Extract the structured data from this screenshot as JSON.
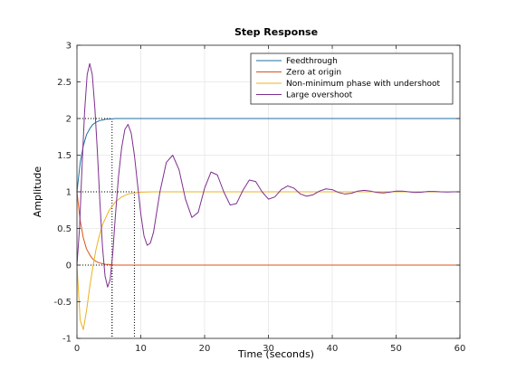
{
  "chart_data": {
    "type": "line",
    "title": "Step Response",
    "xlabel": "Time (seconds)",
    "ylabel": "Amplitude",
    "xlim": [
      0,
      60
    ],
    "ylim": [
      -1,
      3
    ],
    "xticks": [
      "0",
      "10",
      "20",
      "30",
      "40",
      "50",
      "60"
    ],
    "yticks": [
      "-1",
      "-0.5",
      "0",
      "0.5",
      "1",
      "1.5",
      "2",
      "2.5",
      "3"
    ],
    "grid": true,
    "legend_position": "top-right",
    "series": [
      {
        "name": "Feedthrough",
        "color": "#1f6f9f",
        "x": [
          0,
          0.5,
          1,
          1.5,
          2,
          2.5,
          3,
          3.5,
          4,
          4.5,
          5,
          6,
          10,
          20,
          30,
          40,
          50,
          60
        ],
        "y": [
          1.0,
          1.39,
          1.63,
          1.78,
          1.86,
          1.92,
          1.95,
          1.97,
          1.98,
          1.99,
          1.99,
          2.0,
          2.0,
          2.0,
          2.0,
          2.0,
          2.0,
          2.0
        ],
        "settle_x": 5.5,
        "settle_y": 2.0
      },
      {
        "name": "Zero at origin",
        "color": "#d95319",
        "x": [
          0,
          0.5,
          1,
          1.5,
          2,
          2.5,
          3,
          3.5,
          4,
          4.5,
          5,
          6,
          10,
          20,
          30,
          40,
          50,
          60
        ],
        "y": [
          1.0,
          0.61,
          0.37,
          0.22,
          0.14,
          0.08,
          0.05,
          0.03,
          0.02,
          0.01,
          0.01,
          0.0,
          0.0,
          0.0,
          0.0,
          0.0,
          0.0,
          0.0
        ],
        "settle_x": 5.5,
        "settle_y": 0.0
      },
      {
        "name": "Non-minimum phase with undershoot",
        "color": "#edb120",
        "x": [
          0,
          0.5,
          1,
          1.5,
          2,
          2.5,
          3,
          3.5,
          4,
          5,
          6,
          7,
          8,
          9,
          10,
          12,
          14,
          20,
          30,
          40,
          50,
          60
        ],
        "y": [
          0.0,
          -0.75,
          -0.88,
          -0.62,
          -0.3,
          -0.02,
          0.22,
          0.4,
          0.55,
          0.74,
          0.86,
          0.93,
          0.97,
          0.985,
          0.995,
          1.0,
          1.0,
          1.0,
          1.0,
          1.0,
          1.0,
          1.0
        ],
        "settle_x": 9.0,
        "settle_y": 1.0
      },
      {
        "name": "Large overshoot",
        "color": "#7e2f8e",
        "x": [
          0,
          0.4,
          0.8,
          1.2,
          1.6,
          2.0,
          2.4,
          2.8,
          3.2,
          3.6,
          4.0,
          4.4,
          4.8,
          5.2,
          5.6,
          6.0,
          6.5,
          7.0,
          7.5,
          8.0,
          8.5,
          9.0,
          9.5,
          10.0,
          10.5,
          11.0,
          11.5,
          12.0,
          13.0,
          14.0,
          15.0,
          16.0,
          17.0,
          18.0,
          19.0,
          20.0,
          21.0,
          22.0,
          23.0,
          24.0,
          25.0,
          26.0,
          27.0,
          28.0,
          29.0,
          30.0,
          31.0,
          32.0,
          33.0,
          34.0,
          35.0,
          36.0,
          37.0,
          38.0,
          39.0,
          40.0,
          41.0,
          42.0,
          43.0,
          44.0,
          45.0,
          46.0,
          47.0,
          48.0,
          49.0,
          50.0,
          51.0,
          52.0,
          53.0,
          54.0,
          55.0,
          56.0,
          57.0,
          58.0,
          59.0,
          60.0
        ],
        "y": [
          0.0,
          0.5,
          1.35,
          2.1,
          2.6,
          2.75,
          2.6,
          2.15,
          1.55,
          0.85,
          0.25,
          -0.15,
          -0.3,
          -0.2,
          0.15,
          0.65,
          1.2,
          1.6,
          1.85,
          1.92,
          1.8,
          1.5,
          1.1,
          0.7,
          0.4,
          0.27,
          0.3,
          0.45,
          1.0,
          1.4,
          1.5,
          1.3,
          0.9,
          0.65,
          0.72,
          1.05,
          1.27,
          1.23,
          1.0,
          0.82,
          0.84,
          1.02,
          1.16,
          1.14,
          1.0,
          0.9,
          0.93,
          1.03,
          1.08,
          1.05,
          0.97,
          0.94,
          0.96,
          1.01,
          1.04,
          1.03,
          0.99,
          0.97,
          0.98,
          1.01,
          1.02,
          1.01,
          0.99,
          0.985,
          0.995,
          1.01,
          1.01,
          1.0,
          0.99,
          0.995,
          1.005,
          1.005,
          1.0,
          0.997,
          1.0,
          1.0
        ]
      }
    ]
  }
}
